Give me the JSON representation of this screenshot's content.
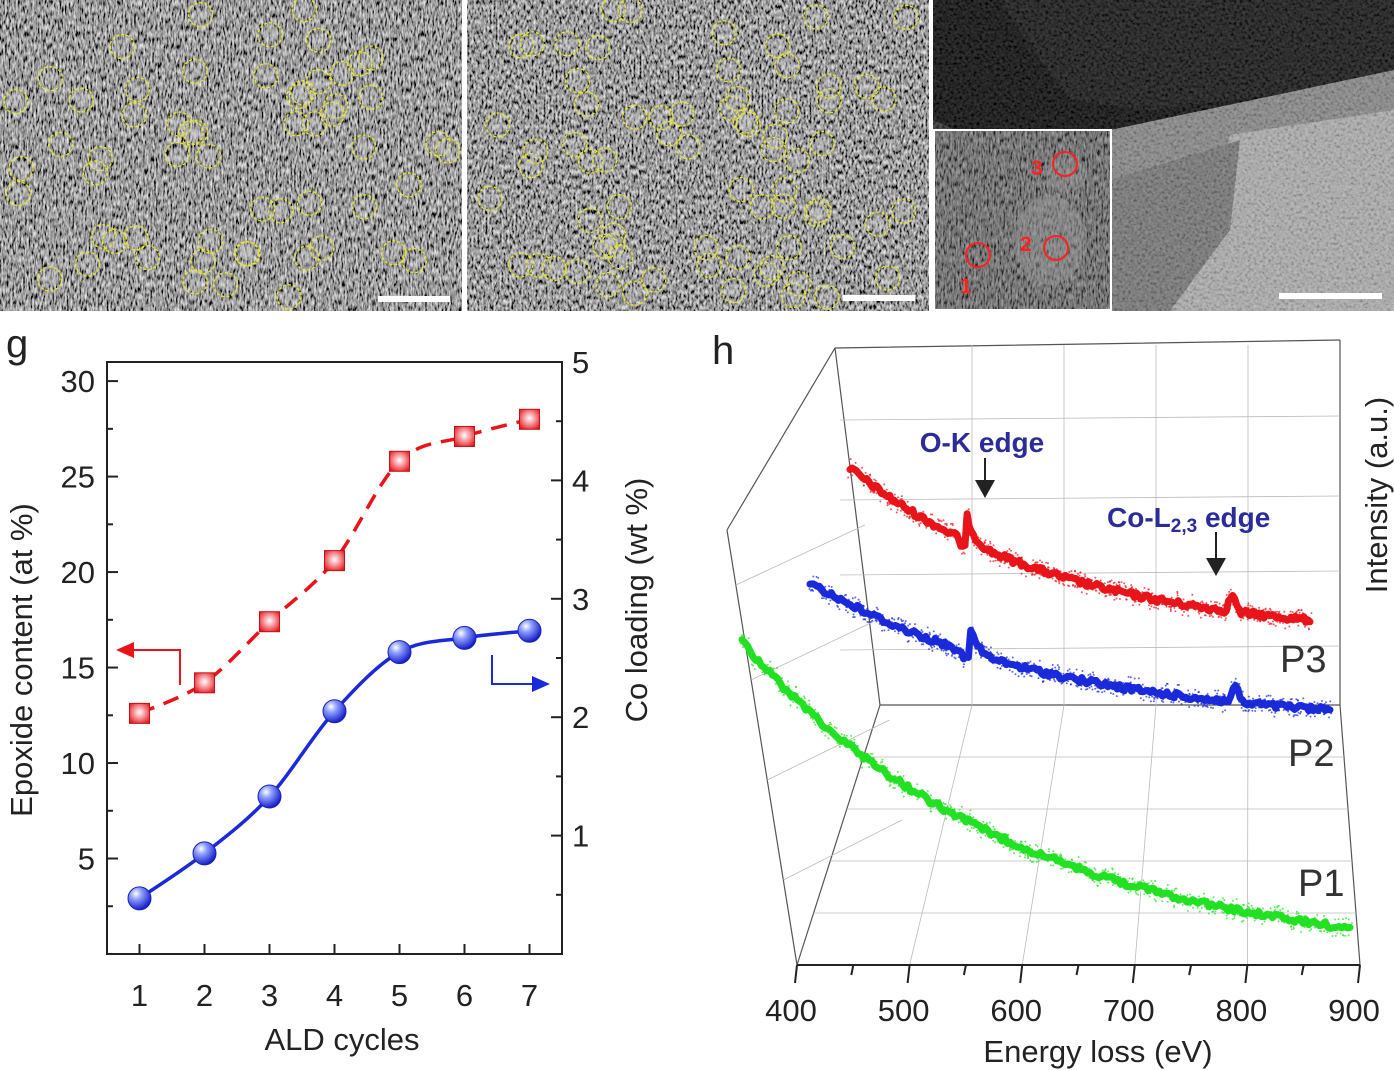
{
  "micrographs": {
    "left_panel": {
      "scale_bar_label": ""
    },
    "middle_panel": {
      "scale_bar_label": ""
    },
    "right_panel": {
      "scale_bar_label": "",
      "inset_points": [
        "1",
        "2",
        "3"
      ]
    }
  },
  "chart_data": [
    {
      "panel_label": "g",
      "type": "line",
      "xlabel": "ALD cycles",
      "x": [
        1,
        2,
        3,
        4,
        5,
        6,
        7
      ],
      "xticks": [
        "1",
        "2",
        "3",
        "4",
        "5",
        "6",
        "7"
      ],
      "xlim": [
        0.5,
        7.5
      ],
      "ylabel_left": "Epoxide content (at %)",
      "ylim_left": [
        0,
        31
      ],
      "yticks_left": [
        "5",
        "10",
        "15",
        "20",
        "25",
        "30"
      ],
      "ylabel_right": "Co loading (wt %)",
      "ylim_right": [
        0,
        5
      ],
      "yticks_right": [
        "1",
        "2",
        "3",
        "4",
        "5"
      ],
      "series": [
        {
          "axis": "left",
          "marker": "square",
          "line": "dashed",
          "color": "#e8141a",
          "values": [
            12.6,
            14.2,
            17.4,
            20.6,
            25.8,
            27.1,
            28.0
          ]
        },
        {
          "axis": "right",
          "marker": "sphere",
          "line": "solid",
          "color": "#1a2adb",
          "values": [
            0.47,
            0.85,
            1.33,
            2.05,
            2.55,
            2.67,
            2.73
          ]
        }
      ]
    },
    {
      "panel_label": "h",
      "type": "line",
      "xlabel": "Energy loss (eV)",
      "ylabel": "Intensity (a.u.)",
      "xlim": [
        400,
        900
      ],
      "xticks": [
        "400",
        "500",
        "600",
        "700",
        "800",
        "900"
      ],
      "annotations": [
        "O-K edge",
        "Co-L",
        "2,3",
        " edge"
      ],
      "series": [
        {
          "name": "P3",
          "color": "#e8141a",
          "x_start": 450,
          "x_end": 847
        },
        {
          "name": "P2",
          "color": "#1a2adb",
          "x_start": 412,
          "x_end": 862
        },
        {
          "name": "P1",
          "color": "#22e022",
          "x_start": 400,
          "x_end": 878
        }
      ]
    }
  ]
}
